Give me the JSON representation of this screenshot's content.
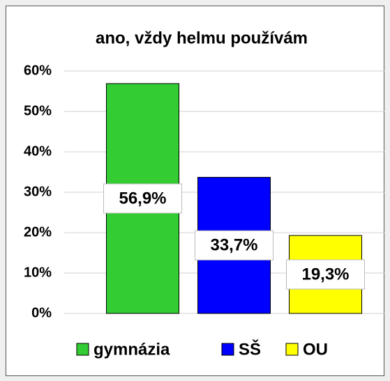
{
  "chart_data": {
    "type": "bar",
    "title": "ano, vždy helmu používám",
    "categories": [
      "gymnázia",
      "SŠ",
      "OU"
    ],
    "values": [
      56.9,
      33.7,
      19.3
    ],
    "value_labels": [
      "56,9%",
      "33,7%",
      "19,3%"
    ],
    "colors": [
      "#33cc33",
      "#0000ff",
      "#ffff00"
    ],
    "ylim": [
      0,
      60
    ],
    "yticks": [
      {
        "value": 0,
        "label": "0%"
      },
      {
        "value": 10,
        "label": "10%"
      },
      {
        "value": 20,
        "label": "20%"
      },
      {
        "value": 30,
        "label": "30%"
      },
      {
        "value": 40,
        "label": "40%"
      },
      {
        "value": 50,
        "label": "50%"
      },
      {
        "value": 60,
        "label": "60%"
      }
    ],
    "grid": true,
    "legend": "bottom"
  }
}
